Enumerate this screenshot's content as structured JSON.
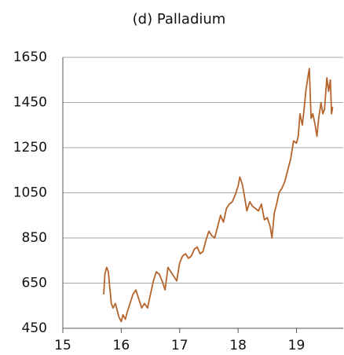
{
  "chart_data": {
    "type": "line",
    "title": "(d) Palladium",
    "x": [
      15.7,
      15.72,
      15.75,
      15.78,
      15.8,
      15.83,
      15.86,
      15.9,
      15.93,
      15.96,
      16.0,
      16.03,
      16.07,
      16.1,
      16.15,
      16.2,
      16.25,
      16.3,
      16.35,
      16.4,
      16.45,
      16.5,
      16.55,
      16.6,
      16.65,
      16.7,
      16.75,
      16.8,
      16.85,
      16.9,
      16.95,
      17.0,
      17.05,
      17.1,
      17.15,
      17.2,
      17.25,
      17.3,
      17.35,
      17.4,
      17.45,
      17.5,
      17.55,
      17.6,
      17.65,
      17.7,
      17.75,
      17.8,
      17.85,
      17.9,
      17.95,
      18.0,
      18.03,
      18.07,
      18.1,
      18.15,
      18.2,
      18.25,
      18.3,
      18.35,
      18.4,
      18.45,
      18.5,
      18.55,
      18.58,
      18.62,
      18.66,
      18.7,
      18.75,
      18.8,
      18.85,
      18.9,
      18.95,
      19.0,
      19.03,
      19.06,
      19.1,
      19.13,
      19.16,
      19.2,
      19.22,
      19.25,
      19.28,
      19.32,
      19.35,
      19.38,
      19.42,
      19.45,
      19.48,
      19.52,
      19.55,
      19.58,
      19.6,
      19.62
    ],
    "series": [
      {
        "name": "Palladium",
        "color": "#b5642c",
        "values": [
          600,
          690,
          720,
          700,
          640,
          560,
          540,
          560,
          530,
          500,
          480,
          510,
          490,
          520,
          560,
          600,
          620,
          580,
          540,
          560,
          540,
          600,
          660,
          700,
          690,
          660,
          620,
          720,
          700,
          680,
          660,
          740,
          770,
          780,
          760,
          770,
          800,
          810,
          780,
          790,
          840,
          880,
          860,
          850,
          900,
          950,
          920,
          980,
          1000,
          1010,
          1040,
          1080,
          1120,
          1090,
          1050,
          970,
          1010,
          990,
          980,
          970,
          1000,
          930,
          940,
          900,
          850,
          960,
          1000,
          1050,
          1070,
          1100,
          1150,
          1200,
          1280,
          1270,
          1300,
          1400,
          1350,
          1420,
          1500,
          1570,
          1600,
          1380,
          1400,
          1350,
          1300,
          1380,
          1450,
          1400,
          1420,
          1560,
          1500,
          1550,
          1400,
          1430
        ]
      }
    ],
    "xlim": [
      15,
      19.8
    ],
    "xticks": [
      15,
      16,
      17,
      18,
      19
    ],
    "ylim": [
      450,
      1650
    ],
    "yticks": [
      450,
      650,
      850,
      1050,
      1250,
      1450,
      1650
    ],
    "grid": true
  }
}
